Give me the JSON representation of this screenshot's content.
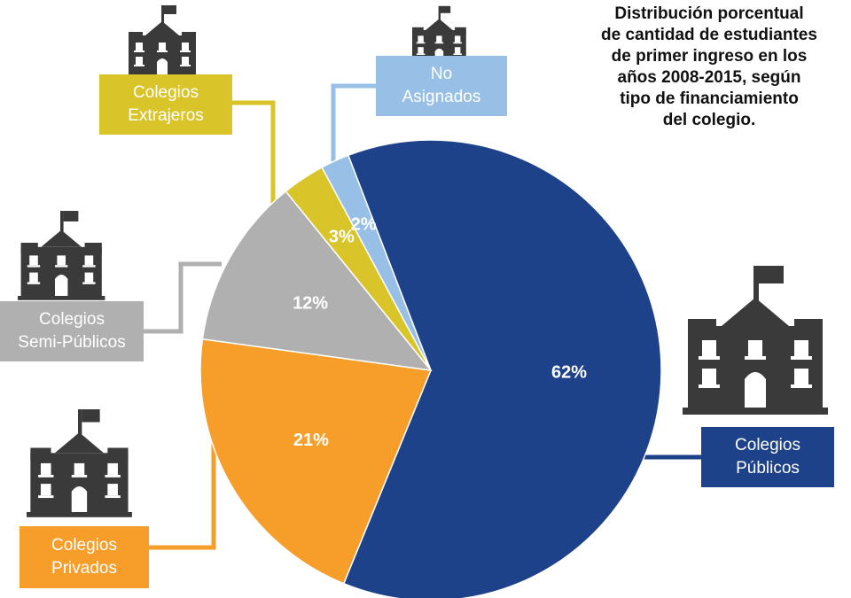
{
  "title": "Distribución porcentual\nde cantidad de estudiantes\nde primer ingreso en los\naños 2008-2015, según\ntipo de financiamiento\ndel colegio.",
  "chart_data": {
    "type": "pie",
    "title": "Distribución porcentual de cantidad de estudiantes de primer ingreso en los años 2008-2015, según tipo de financiamiento del colegio.",
    "slices": [
      {
        "label": "Colegios Públicos",
        "value": 62,
        "value_label": "62%",
        "color": "#1d4289",
        "icon": "school-building-icon"
      },
      {
        "label": "Colegios Privados",
        "value": 21,
        "value_label": "21%",
        "color": "#f69e29",
        "icon": "school-building-icon"
      },
      {
        "label": "Colegios Semi-Públicos",
        "value": 12,
        "value_label": "12%",
        "color": "#b0b0b0",
        "icon": "school-building-icon"
      },
      {
        "label": "Colegios Extrajeros",
        "value": 3,
        "value_label": "3%",
        "color": "#d9c42a",
        "icon": "school-building-icon"
      },
      {
        "label": "No Asignados",
        "value": 2,
        "value_label": "2%",
        "color": "#98c0e6",
        "icon": "school-building-icon"
      }
    ]
  },
  "labels": {
    "publicos": "Colegios\nPúblicos",
    "privados": "Colegios\nPrivados",
    "semi": "Colegios\nSemi-Públicos",
    "extranjeros": "Colegios\nExtrajeros",
    "no_asignados": "No\nAsignados"
  },
  "icon_color": "#3a3a3a"
}
